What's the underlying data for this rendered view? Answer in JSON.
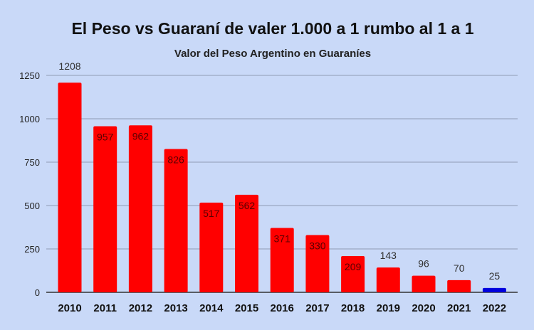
{
  "chart_data": {
    "type": "bar",
    "title": "El Peso vs Guaraní de valer 1.000 a 1 rumbo al 1 a 1",
    "subtitle": "Valor del Peso Argentino en Guaraníes",
    "xlabel": "",
    "ylabel": "",
    "categories": [
      "2010",
      "2011",
      "2012",
      "2013",
      "2014",
      "2015",
      "2016",
      "2017",
      "2018",
      "2019",
      "2020",
      "2021",
      "2022"
    ],
    "values": [
      1208,
      957,
      962,
      826,
      517,
      562,
      371,
      330,
      209,
      143,
      96,
      70,
      25
    ],
    "data_labels": [
      "1208",
      "957",
      "962",
      "826",
      "517",
      "562",
      "371",
      "330",
      "209",
      "143",
      "96",
      "70",
      "25"
    ],
    "ylim": [
      0,
      1250
    ],
    "yticks": [
      "0",
      "250",
      "500",
      "750",
      "1000",
      "1250"
    ],
    "grid": true,
    "colors": {
      "bar": "#ff0000",
      "highlight": "#0000dd",
      "background": "#c9d9f8",
      "grid": "#8f9bb3"
    },
    "highlight_category": "2022"
  }
}
